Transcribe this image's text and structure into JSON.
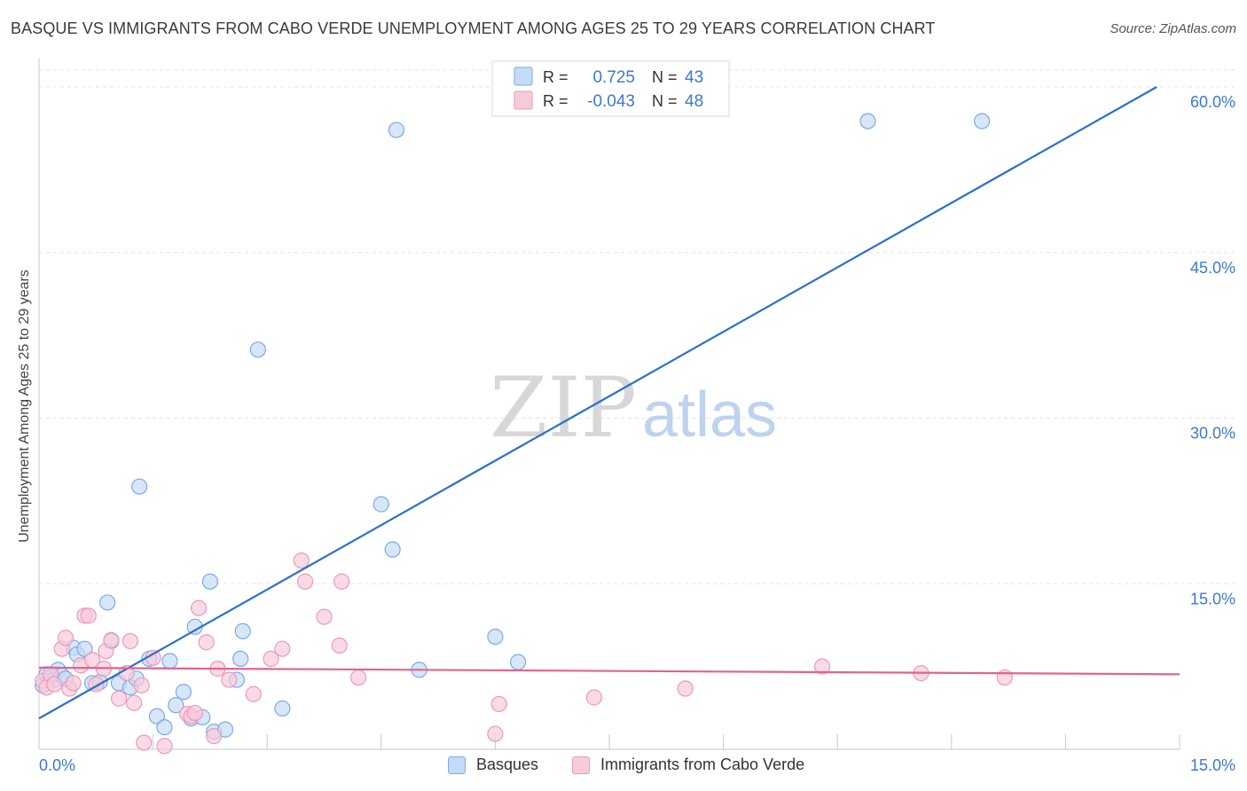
{
  "chart_data": {
    "type": "scatter",
    "title": "BASQUE VS IMMIGRANTS FROM CABO VERDE UNEMPLOYMENT AMONG AGES 25 TO 29 YEARS CORRELATION CHART",
    "source": "Source: ZipAtlas.com",
    "ylabel": "Unemployment Among Ages 25 to 29 years",
    "xlabel": "",
    "xlim": [
      0,
      15
    ],
    "ylim": [
      0,
      60
    ],
    "x_tick_labels": {
      "min": "0.0%",
      "max": "15.0%"
    },
    "y_tick_labels": [
      "15.0%",
      "30.0%",
      "45.0%",
      "60.0%"
    ],
    "y_tick_values": [
      15,
      30,
      45,
      60
    ],
    "grid": true,
    "watermark": {
      "part1": "ZIP",
      "part2": "atlas"
    },
    "legend_stats": [
      {
        "r_label": "R =",
        "r_value": "0.725",
        "n_label": "N =",
        "n_value": "43"
      },
      {
        "r_label": "R =",
        "r_value": "-0.043",
        "n_label": "N =",
        "n_value": "48"
      }
    ],
    "series": [
      {
        "name": "Basques",
        "color": "#7aaae8",
        "fill": "#c6dbf7",
        "line_color": "#2a6fcf",
        "trend": {
          "x0": 0,
          "y0": 2.8,
          "x1": 14.7,
          "y1": 60
        },
        "points": [
          [
            0.05,
            5.8
          ],
          [
            0.1,
            6.8
          ],
          [
            0.15,
            6.5
          ],
          [
            0.2,
            6.3
          ],
          [
            0.25,
            7.2
          ],
          [
            0.3,
            6.7
          ],
          [
            0.45,
            9.2
          ],
          [
            0.5,
            8.6
          ],
          [
            0.6,
            9.1
          ],
          [
            0.7,
            6.0
          ],
          [
            0.8,
            6.1
          ],
          [
            0.9,
            13.3
          ],
          [
            0.95,
            9.8
          ],
          [
            1.05,
            6.0
          ],
          [
            1.2,
            5.6
          ],
          [
            1.28,
            6.4
          ],
          [
            1.32,
            23.8
          ],
          [
            1.45,
            8.2
          ],
          [
            1.55,
            3.0
          ],
          [
            1.65,
            2.0
          ],
          [
            1.72,
            8.0
          ],
          [
            1.8,
            4.0
          ],
          [
            1.9,
            5.2
          ],
          [
            2.0,
            2.8
          ],
          [
            2.05,
            11.1
          ],
          [
            2.15,
            2.9
          ],
          [
            2.3,
            1.6
          ],
          [
            2.25,
            15.2
          ],
          [
            2.45,
            1.8
          ],
          [
            2.6,
            6.3
          ],
          [
            2.65,
            8.2
          ],
          [
            2.68,
            10.7
          ],
          [
            2.88,
            36.2
          ],
          [
            3.2,
            3.7
          ],
          [
            4.65,
            18.1
          ],
          [
            4.5,
            22.2
          ],
          [
            4.7,
            56.1
          ],
          [
            5.0,
            7.2
          ],
          [
            6.0,
            10.2
          ],
          [
            6.3,
            7.9
          ],
          [
            10.9,
            56.9
          ],
          [
            12.4,
            56.9
          ],
          [
            0.35,
            6.4
          ]
        ]
      },
      {
        "name": "Immigrants from Cabo Verde",
        "color": "#eb9ab5",
        "fill": "#f8cbdb",
        "line_color": "#e0648e",
        "trend": {
          "x0": 0,
          "y0": 7.4,
          "x1": 15,
          "y1": 6.8
        },
        "points": [
          [
            0.05,
            6.2
          ],
          [
            0.1,
            5.6
          ],
          [
            0.15,
            6.8
          ],
          [
            0.2,
            5.9
          ],
          [
            0.3,
            9.1
          ],
          [
            0.35,
            10.1
          ],
          [
            0.4,
            5.5
          ],
          [
            0.45,
            6.0
          ],
          [
            0.55,
            7.6
          ],
          [
            0.6,
            12.1
          ],
          [
            0.65,
            12.1
          ],
          [
            0.7,
            8.1
          ],
          [
            0.75,
            5.9
          ],
          [
            0.85,
            7.3
          ],
          [
            0.88,
            8.9
          ],
          [
            0.95,
            9.9
          ],
          [
            1.05,
            4.6
          ],
          [
            1.15,
            6.9
          ],
          [
            1.2,
            9.8
          ],
          [
            1.25,
            4.2
          ],
          [
            1.35,
            5.8
          ],
          [
            1.38,
            0.6
          ],
          [
            1.5,
            8.3
          ],
          [
            1.65,
            0.3
          ],
          [
            1.95,
            3.2
          ],
          [
            2.0,
            3.0
          ],
          [
            2.05,
            3.3
          ],
          [
            2.1,
            12.8
          ],
          [
            2.2,
            9.7
          ],
          [
            2.3,
            1.2
          ],
          [
            2.35,
            7.3
          ],
          [
            2.5,
            6.3
          ],
          [
            2.82,
            5.0
          ],
          [
            3.05,
            8.2
          ],
          [
            3.2,
            9.1
          ],
          [
            3.45,
            17.1
          ],
          [
            3.5,
            15.2
          ],
          [
            3.75,
            12.0
          ],
          [
            3.95,
            9.4
          ],
          [
            3.98,
            15.2
          ],
          [
            4.2,
            6.5
          ],
          [
            6.0,
            1.4
          ],
          [
            6.05,
            4.1
          ],
          [
            7.3,
            4.7
          ],
          [
            8.5,
            5.5
          ],
          [
            10.3,
            7.5
          ],
          [
            11.6,
            6.9
          ],
          [
            12.7,
            6.5
          ]
        ]
      }
    ]
  }
}
